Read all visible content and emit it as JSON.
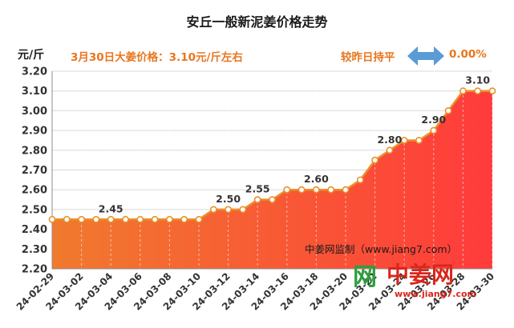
{
  "header": {
    "title": "安丘一般新泥姜价格走势",
    "unit": "元/斤",
    "price_note": "3月30日大姜价格：3.10元/斤左右",
    "compare_label": "较昨日持平",
    "compare_value": "0.00%",
    "compare_icon": "double-arrow-icon"
  },
  "watermark": {
    "monitor_text": "中姜网监制（www.jiang7.com）",
    "logo_text": "中姜网",
    "logo_url": "www.jiang7.com"
  },
  "colors": {
    "line": "#e8902a",
    "fill_top": "#ff3b3b",
    "fill_bottom": "#f07a2e",
    "label": "#e8761e",
    "arrow": "#5b9bd5",
    "logo_green": "#2e9e3e",
    "logo_red": "#d9261c"
  },
  "chart_data": {
    "type": "area",
    "title": "安丘一般新泥姜价格走势",
    "xlabel": "",
    "ylabel": "元/斤",
    "ylim": [
      2.2,
      3.2
    ],
    "yticks": [
      "2.20",
      "2.30",
      "2.40",
      "2.50",
      "2.60",
      "2.70",
      "2.80",
      "2.90",
      "3.00",
      "3.10",
      "3.20"
    ],
    "grid": "vertical-dashed",
    "x_tick_labels": [
      "24-02-29",
      "24-03-02",
      "24-03-04",
      "24-03-06",
      "24-03-08",
      "24-03-10",
      "24-03-12",
      "24-03-14",
      "24-03-16",
      "24-03-18",
      "24-03-20",
      "24-03-22",
      "24-03-24",
      "24-03-26",
      "24-03-28",
      "24-03-30"
    ],
    "x": [
      "24-02-29",
      "24-03-01",
      "24-03-02",
      "24-03-03",
      "24-03-04",
      "24-03-05",
      "24-03-06",
      "24-03-07",
      "24-03-08",
      "24-03-09",
      "24-03-10",
      "24-03-11",
      "24-03-12",
      "24-03-13",
      "24-03-14",
      "24-03-15",
      "24-03-16",
      "24-03-17",
      "24-03-18",
      "24-03-19",
      "24-03-20",
      "24-03-21",
      "24-03-22",
      "24-03-23",
      "24-03-24",
      "24-03-25",
      "24-03-26",
      "24-03-27",
      "24-03-28",
      "24-03-29",
      "24-03-30"
    ],
    "values": [
      2.45,
      2.45,
      2.45,
      2.45,
      2.45,
      2.45,
      2.45,
      2.45,
      2.45,
      2.45,
      2.45,
      2.5,
      2.5,
      2.5,
      2.55,
      2.55,
      2.6,
      2.6,
      2.6,
      2.6,
      2.6,
      2.65,
      2.75,
      2.8,
      2.85,
      2.85,
      2.9,
      3.0,
      3.1,
      3.1,
      3.1
    ],
    "data_labels": [
      {
        "x": "24-03-04",
        "text": "2.45"
      },
      {
        "x": "24-03-12",
        "text": "2.50"
      },
      {
        "x": "24-03-14",
        "text": "2.55"
      },
      {
        "x": "24-03-18",
        "text": "2.60"
      },
      {
        "x": "24-03-23",
        "text": "2.80"
      },
      {
        "x": "24-03-26",
        "text": "2.90"
      },
      {
        "x": "24-03-29",
        "text": "3.10"
      }
    ]
  }
}
